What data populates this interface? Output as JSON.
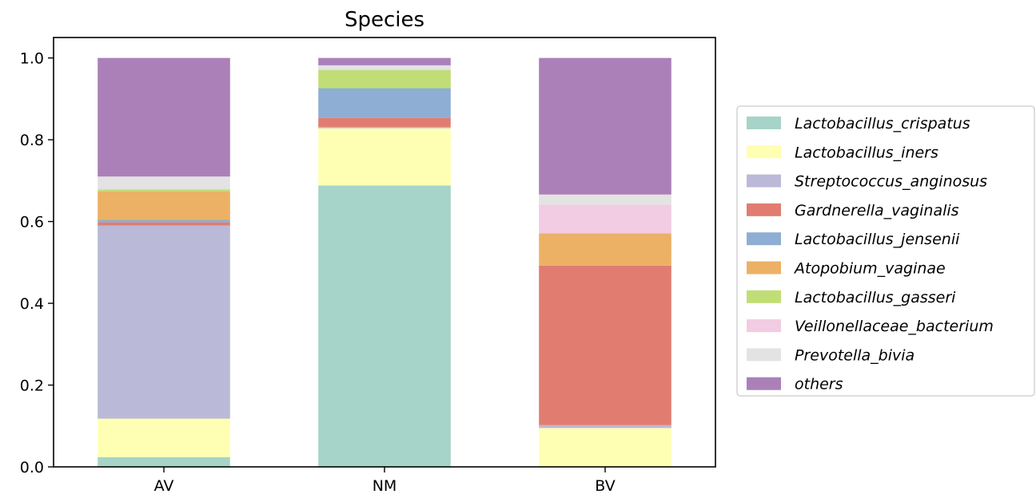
{
  "chart_data": {
    "type": "bar",
    "stacked": true,
    "title": "Species",
    "xlabel": "",
    "ylabel": "",
    "ylim": [
      0,
      1.05
    ],
    "yticks": [
      "0.0",
      "0.2",
      "0.4",
      "0.6",
      "0.8",
      "1.0"
    ],
    "categories": [
      "AV",
      "NM",
      "BV"
    ],
    "grid": false,
    "legend_position": "right",
    "series": [
      {
        "name": "Lactobacillus_crispatus",
        "color": "#a6d4c8",
        "values": [
          0.024,
          0.688,
          0.0
        ]
      },
      {
        "name": "Lactobacillus_iners",
        "color": "#ffffb3",
        "values": [
          0.094,
          0.14,
          0.095
        ]
      },
      {
        "name": "Streptococcus_anginosus",
        "color": "#bbb9d8",
        "values": [
          0.472,
          0.003,
          0.007
        ]
      },
      {
        "name": "Gardnerella_vaginalis",
        "color": "#e07d70",
        "values": [
          0.008,
          0.022,
          0.39
        ]
      },
      {
        "name": "Lactobacillus_jensenii",
        "color": "#8eaed3",
        "values": [
          0.006,
          0.073,
          0.0
        ]
      },
      {
        "name": "Atopobium_vaginae",
        "color": "#ecb165",
        "values": [
          0.07,
          0.0,
          0.079
        ]
      },
      {
        "name": "Lactobacillus_gasseri",
        "color": "#c0de75",
        "values": [
          0.004,
          0.044,
          0.0
        ]
      },
      {
        "name": "Veillonellaceae_bacterium",
        "color": "#f1cce2",
        "values": [
          0.002,
          0.002,
          0.07
        ]
      },
      {
        "name": "Prevotella_bivia",
        "color": "#e3e3e3",
        "values": [
          0.03,
          0.01,
          0.025
        ]
      },
      {
        "name": "others",
        "color": "#ab80b8",
        "values": [
          0.29,
          0.018,
          0.334
        ]
      }
    ]
  }
}
